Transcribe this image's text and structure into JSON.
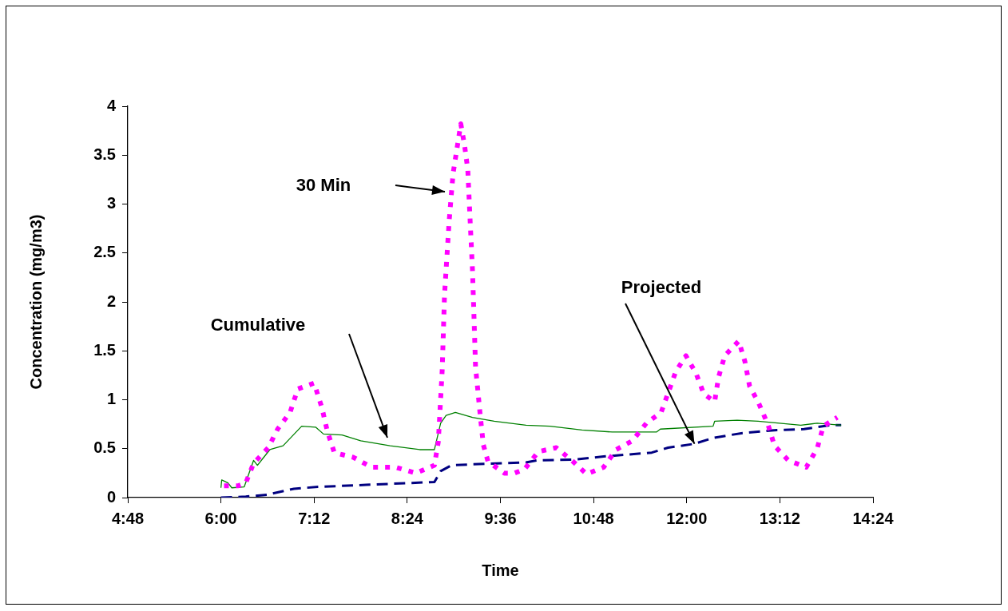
{
  "chart_data": {
    "type": "line",
    "xlabel": "Time",
    "ylabel": "Concentration (mg/m3)",
    "xlim": [
      4.8,
      14.4
    ],
    "xticks": [
      {
        "value": 4.8,
        "label": "4:48"
      },
      {
        "value": 6,
        "label": "6:00"
      },
      {
        "value": 7.2,
        "label": "7:12"
      },
      {
        "value": 8.4,
        "label": "8:24"
      },
      {
        "value": 9.6,
        "label": "9:36"
      },
      {
        "value": 10.8,
        "label": "10:48"
      },
      {
        "value": 12,
        "label": "12:00"
      },
      {
        "value": 13.2,
        "label": "13:12"
      },
      {
        "value": 14.4,
        "label": "14:24"
      }
    ],
    "ylim": [
      0,
      4
    ],
    "yticks": [
      0,
      0.5,
      1,
      1.5,
      2,
      2.5,
      3,
      3.5,
      4
    ],
    "grid": false,
    "legend": false,
    "marker": "none",
    "series": [
      {
        "color": "#ff00ff",
        "line_style": "dotted",
        "x": [
          6.04,
          6.22,
          6.32,
          6.42,
          6.61,
          6.73,
          6.89,
          6.99,
          7.2,
          7.3,
          7.37,
          7.46,
          7.71,
          7.94,
          8.25,
          8.51,
          8.75,
          8.8,
          8.85,
          8.88,
          8.94,
          8.99,
          9.09,
          9.14,
          9.18,
          9.21,
          9.24,
          9.26,
          9.28,
          9.31,
          9.34,
          9.38,
          9.44,
          9.65,
          9.78,
          9.91,
          10.09,
          10.32,
          10.52,
          10.71,
          10.93,
          11.09,
          11.3,
          11.48,
          11.67,
          11.77,
          11.86,
          11.99,
          12.12,
          12.22,
          12.36,
          12.41,
          12.49,
          12.67,
          12.75,
          12.81,
          12.93,
          13.05,
          13.13,
          13.31,
          13.54,
          13.68,
          13.76,
          13.94
        ],
        "values": [
          0.12,
          0.12,
          0.15,
          0.35,
          0.51,
          0.7,
          0.87,
          1.11,
          1.17,
          0.92,
          0.68,
          0.46,
          0.41,
          0.31,
          0.31,
          0.25,
          0.33,
          0.57,
          1.3,
          2.07,
          2.83,
          3.31,
          3.82,
          3.59,
          3.35,
          2.83,
          2.33,
          1.84,
          1.33,
          1.09,
          0.84,
          0.54,
          0.37,
          0.25,
          0.25,
          0.29,
          0.47,
          0.51,
          0.38,
          0.24,
          0.31,
          0.49,
          0.58,
          0.76,
          0.87,
          1.09,
          1.29,
          1.45,
          1.27,
          1.06,
          0.98,
          1.23,
          1.45,
          1.6,
          1.39,
          1.14,
          0.96,
          0.74,
          0.53,
          0.38,
          0.31,
          0.5,
          0.73,
          0.82
        ]
      },
      {
        "color": "#008000",
        "line_style": "solid",
        "x": [
          6.0,
          6.01,
          6.09,
          6.14,
          6.3,
          6.42,
          6.47,
          6.55,
          6.63,
          6.8,
          7.04,
          7.22,
          7.32,
          7.56,
          7.8,
          8.18,
          8.56,
          8.75,
          8.83,
          8.9,
          9.02,
          9.24,
          9.52,
          9.93,
          10.24,
          10.65,
          11.04,
          11.61,
          11.66,
          12.34,
          12.36,
          12.65,
          12.92,
          13.47,
          13.68,
          13.99
        ],
        "values": [
          0.1,
          0.18,
          0.15,
          0.1,
          0.11,
          0.38,
          0.33,
          0.41,
          0.49,
          0.53,
          0.73,
          0.72,
          0.65,
          0.64,
          0.58,
          0.53,
          0.49,
          0.49,
          0.76,
          0.84,
          0.87,
          0.82,
          0.78,
          0.74,
          0.73,
          0.69,
          0.67,
          0.67,
          0.7,
          0.73,
          0.78,
          0.79,
          0.78,
          0.74,
          0.76,
          0.74
        ]
      },
      {
        "color": "#000080",
        "line_style": "dashed",
        "x": [
          6.0,
          6.32,
          6.6,
          6.94,
          7.25,
          7.87,
          8.75,
          8.83,
          8.97,
          9.24,
          9.93,
          10.07,
          10.58,
          10.93,
          11.55,
          11.76,
          12.1,
          12.34,
          12.72,
          13.16,
          13.51,
          13.85,
          13.99
        ],
        "values": [
          0,
          0.01,
          0.03,
          0.09,
          0.11,
          0.13,
          0.16,
          0.27,
          0.33,
          0.34,
          0.36,
          0.38,
          0.39,
          0.42,
          0.46,
          0.51,
          0.55,
          0.61,
          0.66,
          0.69,
          0.7,
          0.74,
          0.74
        ]
      }
    ],
    "annotations": [
      "30 Min",
      "Cumulative",
      {
        "text": "Projected",
        "x": 12.1,
        "y": 0.55
      }
    ]
  }
}
